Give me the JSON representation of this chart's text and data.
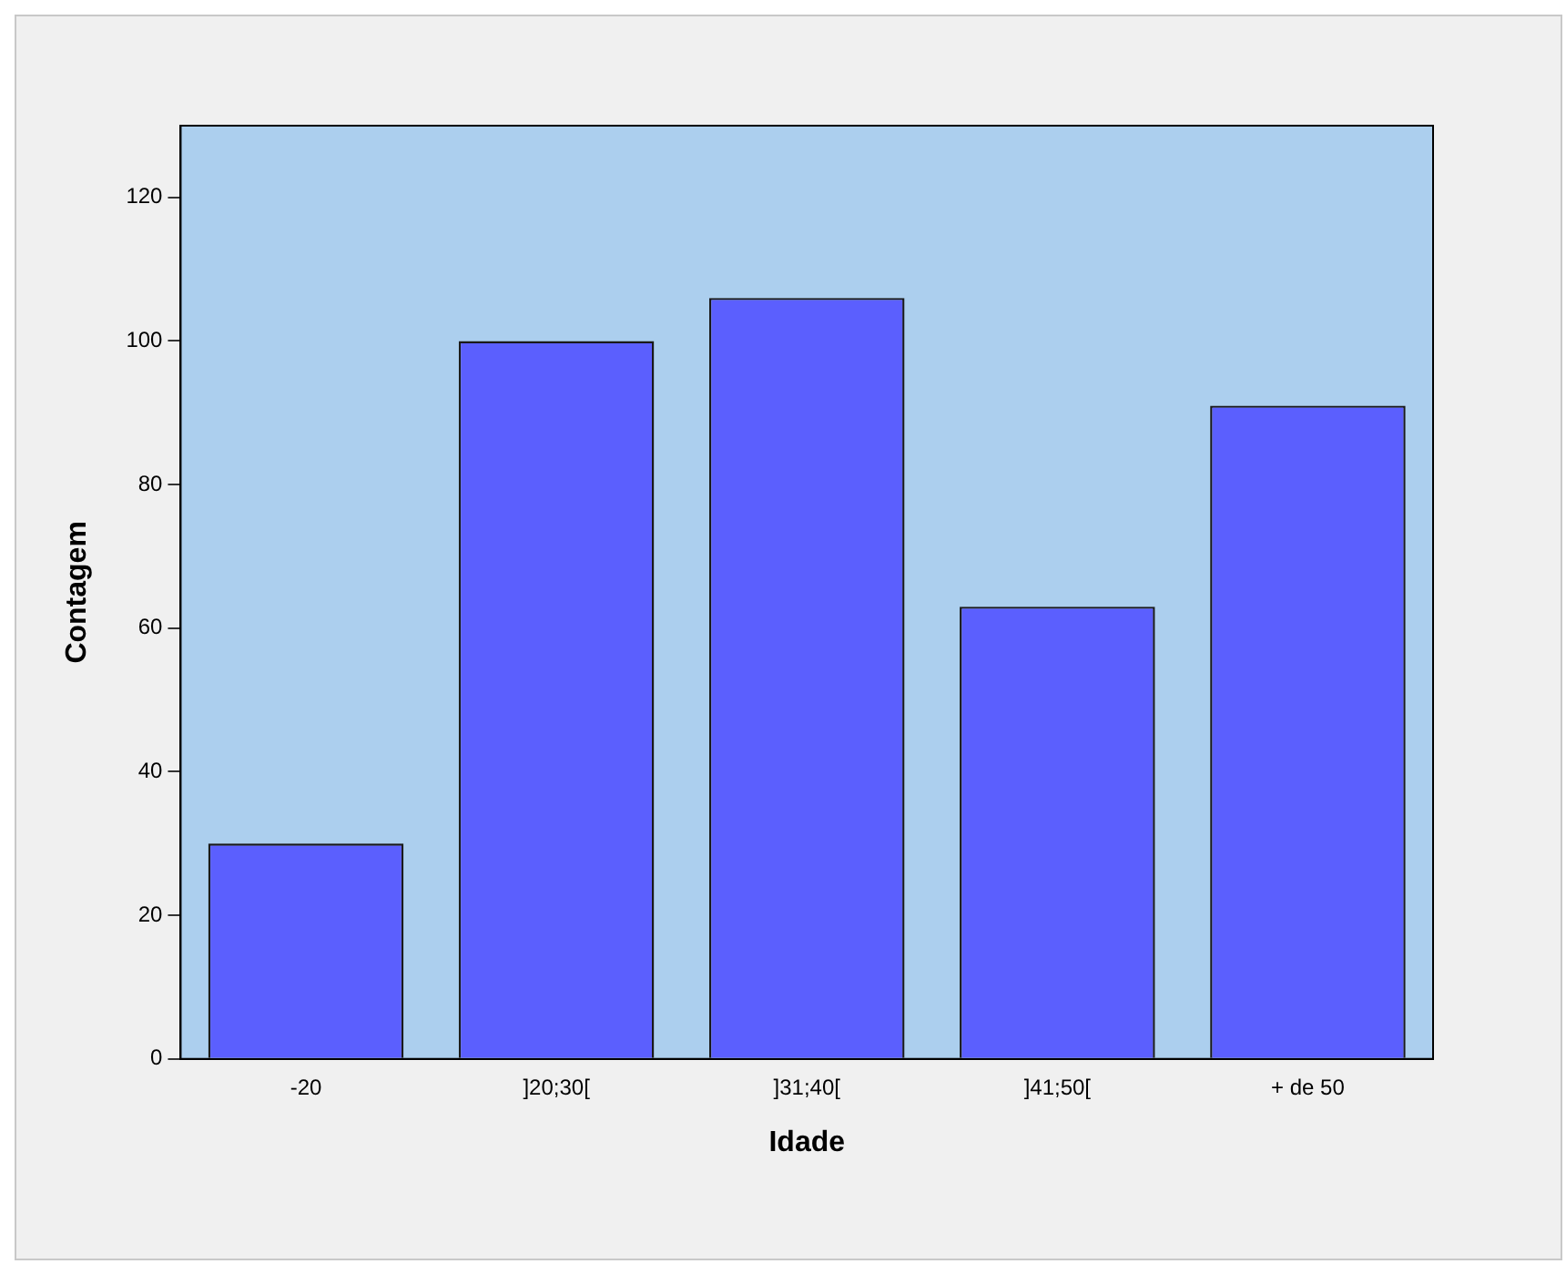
{
  "chart_data": {
    "type": "bar",
    "xlabel": "Idade",
    "ylabel": "Contagem",
    "categories": [
      "-20",
      "]20;30[",
      "]31;40[",
      "]41;50[",
      "+ de 50"
    ],
    "values": [
      30,
      100,
      106,
      63,
      91
    ],
    "color": "#5b5ffe",
    "ylim": [
      0,
      130
    ],
    "yticks": [
      0,
      20,
      40,
      60,
      80,
      100,
      120
    ],
    "grid": false
  }
}
